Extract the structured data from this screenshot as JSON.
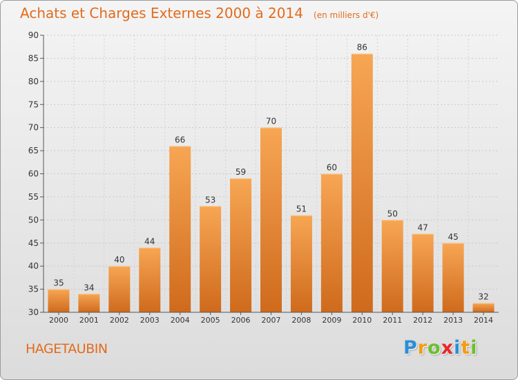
{
  "header": {
    "title": "Achats et Charges Externes 2000 à 2014",
    "unit_note": "(en milliers d'€)"
  },
  "footer": {
    "commune_name": "HAGETAUBIN",
    "brand": {
      "letters": [
        "P",
        "r",
        "o",
        "x",
        "i",
        "t",
        "i"
      ],
      "colors": [
        "#2a8fd6",
        "#f39c12",
        "#6cbf2e",
        "#e8262b",
        "#2a8fd6",
        "#f39c12",
        "#6cbf2e"
      ]
    }
  },
  "chart_data": {
    "type": "bar",
    "title": "Achats et Charges Externes 2000 à 2014",
    "xlabel": "",
    "ylabel": "",
    "categories": [
      "2000",
      "2001",
      "2002",
      "2003",
      "2004",
      "2005",
      "2006",
      "2007",
      "2008",
      "2009",
      "2010",
      "2011",
      "2012",
      "2013",
      "2014"
    ],
    "values": [
      35,
      34,
      40,
      44,
      66,
      53,
      59,
      70,
      51,
      60,
      86,
      50,
      47,
      45,
      32
    ],
    "ylim": [
      30,
      90
    ],
    "yticks": [
      30,
      35,
      40,
      45,
      50,
      55,
      60,
      65,
      70,
      75,
      80,
      85,
      90
    ],
    "grid": true,
    "legend": "none",
    "bar_color_top": "#f7a654",
    "bar_color_bottom": "#cf6a1c",
    "title_color": "#e26b1c"
  }
}
